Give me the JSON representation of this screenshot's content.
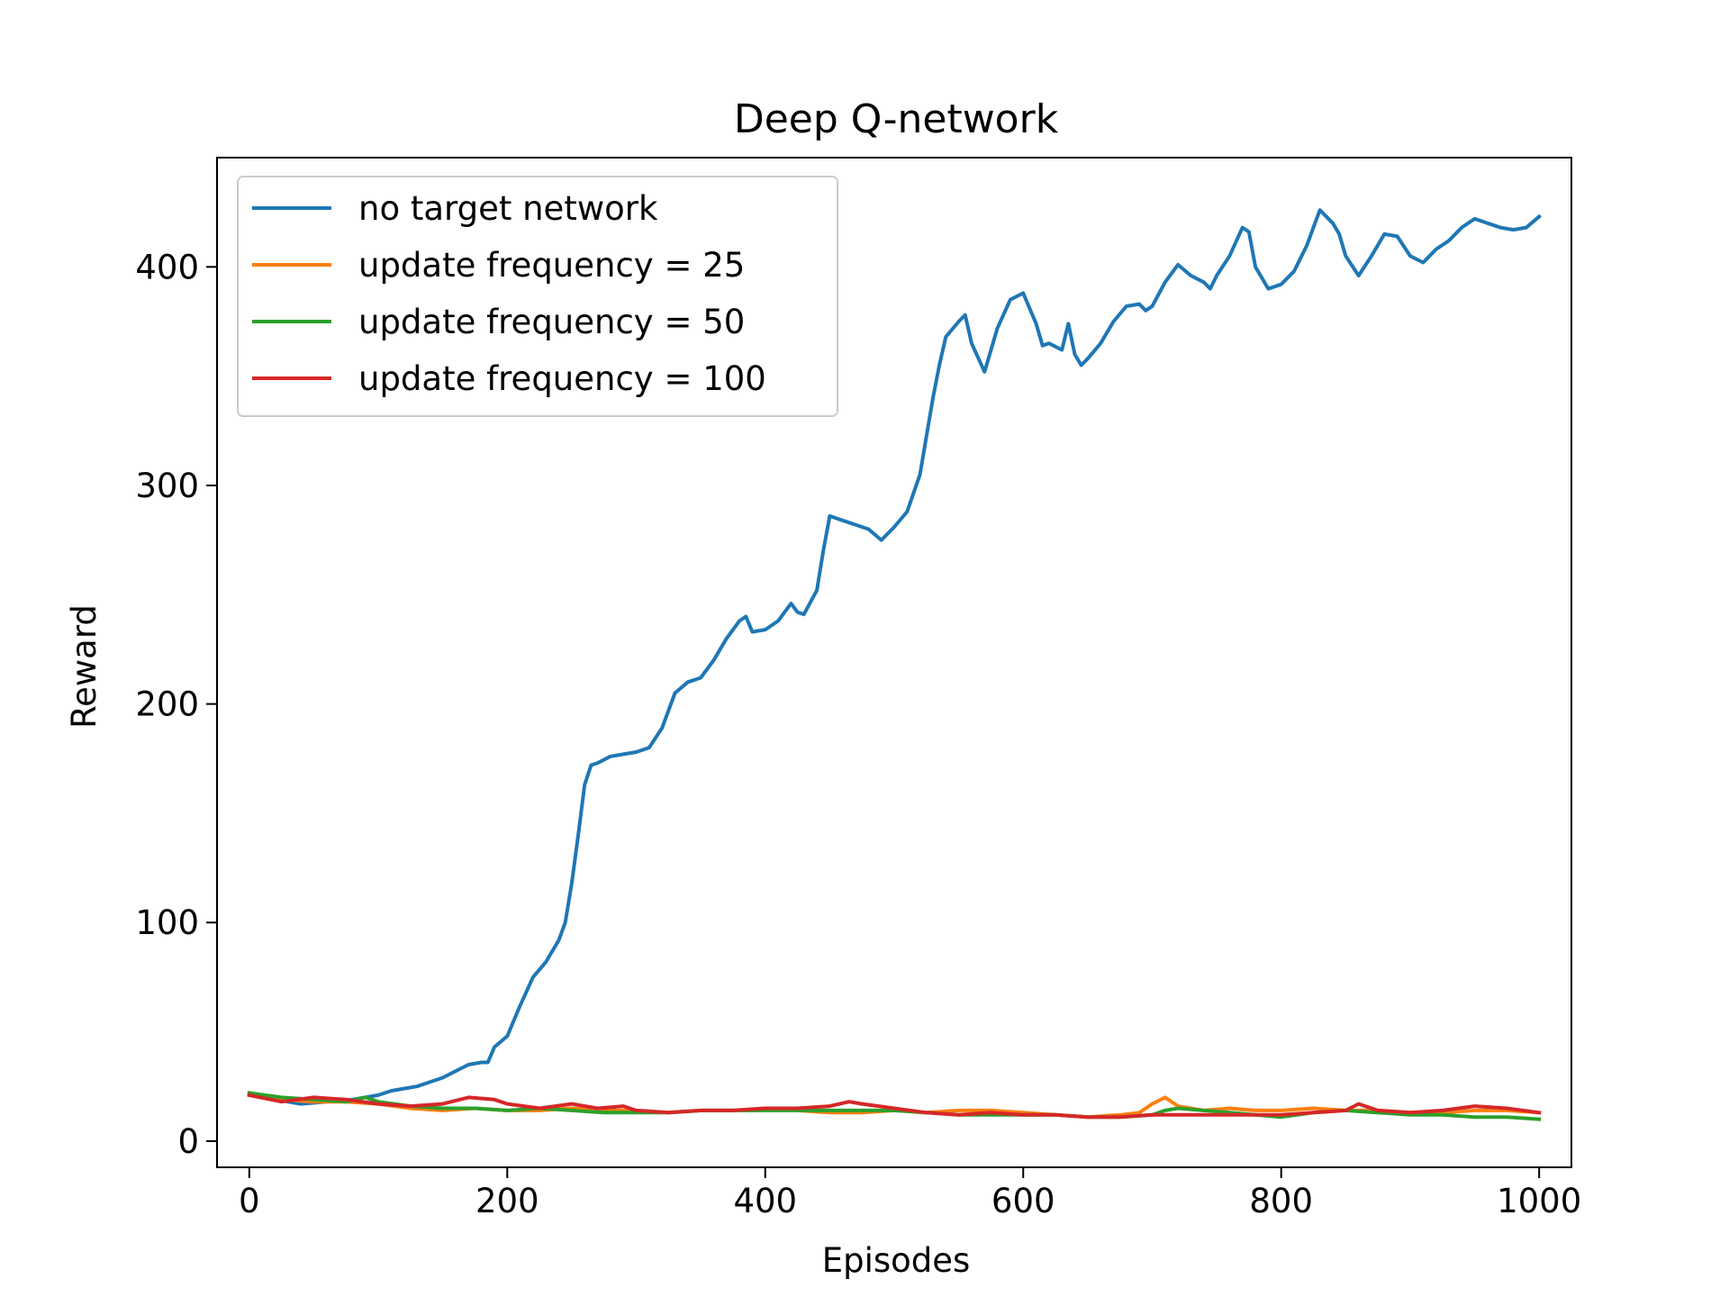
{
  "chart_data": {
    "type": "line",
    "title": "Deep Q-network",
    "xlabel": "Episodes",
    "ylabel": "Reward",
    "xlim": [
      -25,
      1025
    ],
    "ylim": [
      -12,
      450
    ],
    "xticks": [
      0,
      200,
      400,
      600,
      800,
      1000
    ],
    "yticks": [
      0,
      100,
      200,
      300,
      400
    ],
    "xtick_labels": [
      "0",
      "200",
      "400",
      "600",
      "800",
      "1000"
    ],
    "ytick_labels": [
      "0",
      "100",
      "200",
      "300",
      "400"
    ],
    "grid": false,
    "legend_position": "upper-left",
    "series": [
      {
        "name": "no target network",
        "color": "#1f77b4",
        "points": [
          [
            0,
            21
          ],
          [
            20,
            19
          ],
          [
            40,
            17
          ],
          [
            60,
            18
          ],
          [
            80,
            19
          ],
          [
            100,
            21
          ],
          [
            110,
            23
          ],
          [
            120,
            24
          ],
          [
            130,
            25
          ],
          [
            140,
            27
          ],
          [
            150,
            29
          ],
          [
            160,
            32
          ],
          [
            170,
            35
          ],
          [
            180,
            36
          ],
          [
            185,
            36
          ],
          [
            190,
            43
          ],
          [
            200,
            48
          ],
          [
            210,
            62
          ],
          [
            220,
            75
          ],
          [
            230,
            82
          ],
          [
            240,
            92
          ],
          [
            245,
            100
          ],
          [
            250,
            118
          ],
          [
            255,
            140
          ],
          [
            260,
            163
          ],
          [
            265,
            172
          ],
          [
            270,
            173
          ],
          [
            280,
            176
          ],
          [
            290,
            177
          ],
          [
            300,
            178
          ],
          [
            310,
            180
          ],
          [
            320,
            189
          ],
          [
            330,
            205
          ],
          [
            340,
            210
          ],
          [
            350,
            212
          ],
          [
            360,
            220
          ],
          [
            370,
            230
          ],
          [
            380,
            238
          ],
          [
            385,
            240
          ],
          [
            390,
            233
          ],
          [
            400,
            234
          ],
          [
            410,
            238
          ],
          [
            420,
            246
          ],
          [
            425,
            242
          ],
          [
            430,
            241
          ],
          [
            440,
            252
          ],
          [
            445,
            270
          ],
          [
            450,
            286
          ],
          [
            460,
            284
          ],
          [
            470,
            282
          ],
          [
            480,
            280
          ],
          [
            490,
            275
          ],
          [
            500,
            281
          ],
          [
            510,
            288
          ],
          [
            520,
            305
          ],
          [
            530,
            340
          ],
          [
            535,
            355
          ],
          [
            540,
            368
          ],
          [
            550,
            375
          ],
          [
            555,
            378
          ],
          [
            560,
            365
          ],
          [
            570,
            352
          ],
          [
            580,
            372
          ],
          [
            590,
            385
          ],
          [
            600,
            388
          ],
          [
            610,
            374
          ],
          [
            615,
            364
          ],
          [
            620,
            365
          ],
          [
            630,
            362
          ],
          [
            635,
            374
          ],
          [
            640,
            360
          ],
          [
            645,
            355
          ],
          [
            650,
            358
          ],
          [
            660,
            365
          ],
          [
            670,
            375
          ],
          [
            680,
            382
          ],
          [
            690,
            383
          ],
          [
            695,
            380
          ],
          [
            700,
            382
          ],
          [
            710,
            393
          ],
          [
            720,
            401
          ],
          [
            730,
            396
          ],
          [
            740,
            393
          ],
          [
            745,
            390
          ],
          [
            750,
            396
          ],
          [
            760,
            405
          ],
          [
            770,
            418
          ],
          [
            775,
            416
          ],
          [
            780,
            400
          ],
          [
            790,
            390
          ],
          [
            800,
            392
          ],
          [
            810,
            398
          ],
          [
            820,
            410
          ],
          [
            825,
            418
          ],
          [
            830,
            426
          ],
          [
            840,
            420
          ],
          [
            845,
            415
          ],
          [
            850,
            405
          ],
          [
            860,
            396
          ],
          [
            870,
            405
          ],
          [
            880,
            415
          ],
          [
            890,
            414
          ],
          [
            900,
            405
          ],
          [
            910,
            402
          ],
          [
            920,
            408
          ],
          [
            930,
            412
          ],
          [
            940,
            418
          ],
          [
            950,
            422
          ],
          [
            960,
            420
          ],
          [
            970,
            418
          ],
          [
            980,
            417
          ],
          [
            990,
            418
          ],
          [
            1000,
            423
          ]
        ]
      },
      {
        "name": "update frequency = 25",
        "color": "#ff7f0e",
        "points": [
          [
            0,
            22
          ],
          [
            25,
            19
          ],
          [
            50,
            18
          ],
          [
            75,
            18
          ],
          [
            100,
            17
          ],
          [
            125,
            15
          ],
          [
            150,
            14
          ],
          [
            175,
            15
          ],
          [
            200,
            14
          ],
          [
            225,
            14
          ],
          [
            250,
            15
          ],
          [
            275,
            14
          ],
          [
            300,
            14
          ],
          [
            325,
            13
          ],
          [
            350,
            14
          ],
          [
            375,
            14
          ],
          [
            400,
            15
          ],
          [
            425,
            14
          ],
          [
            450,
            13
          ],
          [
            475,
            13
          ],
          [
            500,
            14
          ],
          [
            525,
            13
          ],
          [
            550,
            14
          ],
          [
            575,
            14
          ],
          [
            600,
            13
          ],
          [
            625,
            12
          ],
          [
            650,
            11
          ],
          [
            675,
            12
          ],
          [
            690,
            13
          ],
          [
            700,
            17
          ],
          [
            710,
            20
          ],
          [
            720,
            16
          ],
          [
            740,
            14
          ],
          [
            760,
            15
          ],
          [
            780,
            14
          ],
          [
            800,
            14
          ],
          [
            825,
            15
          ],
          [
            850,
            14
          ],
          [
            875,
            14
          ],
          [
            900,
            13
          ],
          [
            925,
            13
          ],
          [
            950,
            14
          ],
          [
            975,
            14
          ],
          [
            1000,
            13
          ]
        ]
      },
      {
        "name": "update frequency = 50",
        "color": "#2ca02c",
        "points": [
          [
            0,
            22
          ],
          [
            25,
            20
          ],
          [
            50,
            19
          ],
          [
            75,
            18
          ],
          [
            90,
            20
          ],
          [
            100,
            18
          ],
          [
            125,
            16
          ],
          [
            150,
            15
          ],
          [
            175,
            15
          ],
          [
            200,
            14
          ],
          [
            225,
            15
          ],
          [
            250,
            14
          ],
          [
            275,
            13
          ],
          [
            300,
            13
          ],
          [
            325,
            13
          ],
          [
            350,
            14
          ],
          [
            375,
            14
          ],
          [
            400,
            14
          ],
          [
            425,
            14
          ],
          [
            450,
            14
          ],
          [
            475,
            14
          ],
          [
            500,
            14
          ],
          [
            525,
            13
          ],
          [
            550,
            12
          ],
          [
            575,
            12
          ],
          [
            600,
            12
          ],
          [
            625,
            12
          ],
          [
            650,
            11
          ],
          [
            675,
            11
          ],
          [
            700,
            12
          ],
          [
            710,
            14
          ],
          [
            720,
            15
          ],
          [
            740,
            14
          ],
          [
            760,
            13
          ],
          [
            780,
            12
          ],
          [
            800,
            11
          ],
          [
            825,
            13
          ],
          [
            850,
            14
          ],
          [
            875,
            13
          ],
          [
            900,
            12
          ],
          [
            925,
            12
          ],
          [
            950,
            11
          ],
          [
            975,
            11
          ],
          [
            1000,
            10
          ]
        ]
      },
      {
        "name": "update frequency = 100",
        "color": "#d62728",
        "points": [
          [
            0,
            21
          ],
          [
            25,
            18
          ],
          [
            50,
            20
          ],
          [
            75,
            19
          ],
          [
            100,
            17
          ],
          [
            125,
            16
          ],
          [
            150,
            17
          ],
          [
            170,
            20
          ],
          [
            190,
            19
          ],
          [
            200,
            17
          ],
          [
            225,
            15
          ],
          [
            250,
            17
          ],
          [
            270,
            15
          ],
          [
            290,
            16
          ],
          [
            300,
            14
          ],
          [
            325,
            13
          ],
          [
            350,
            14
          ],
          [
            375,
            14
          ],
          [
            400,
            15
          ],
          [
            425,
            15
          ],
          [
            450,
            16
          ],
          [
            465,
            18
          ],
          [
            475,
            17
          ],
          [
            500,
            15
          ],
          [
            525,
            13
          ],
          [
            550,
            12
          ],
          [
            575,
            13
          ],
          [
            600,
            12
          ],
          [
            625,
            12
          ],
          [
            650,
            11
          ],
          [
            675,
            11
          ],
          [
            700,
            12
          ],
          [
            725,
            12
          ],
          [
            750,
            12
          ],
          [
            775,
            12
          ],
          [
            800,
            12
          ],
          [
            825,
            13
          ],
          [
            850,
            14
          ],
          [
            860,
            17
          ],
          [
            875,
            14
          ],
          [
            900,
            13
          ],
          [
            925,
            14
          ],
          [
            950,
            16
          ],
          [
            975,
            15
          ],
          [
            1000,
            13
          ]
        ]
      }
    ]
  }
}
